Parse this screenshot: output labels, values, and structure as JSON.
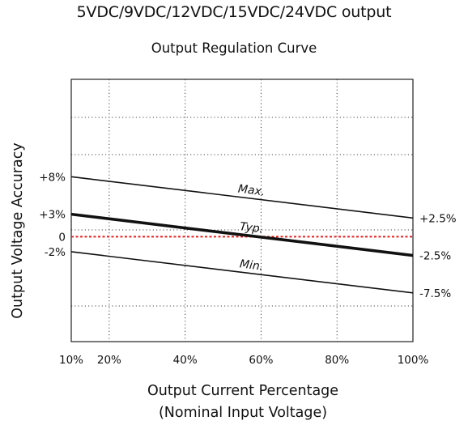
{
  "chart_data": {
    "type": "line",
    "title": "5VDC/9VDC/12VDC/15VDC/24VDC output",
    "subtitle": "Output Regulation Curve",
    "xlabel": "Output Current Percentage",
    "xlabel_sub": "(Nominal Input Voltage)",
    "ylabel": "Output Voltage Accuracy",
    "x_ticks": [
      "10%",
      "20%",
      "40%",
      "60%",
      "80%",
      "100%"
    ],
    "x_tick_values": [
      10,
      20,
      40,
      60,
      80,
      100
    ],
    "y_ticks": [
      "+8%",
      "+3%",
      "0",
      "-2%"
    ],
    "y_tick_values": [
      8,
      3,
      0,
      -2
    ],
    "right_labels": [
      "+2.5%",
      "-2.5%",
      "-7.5%"
    ],
    "right_label_values": [
      2.5,
      -2.5,
      -7.5
    ],
    "xlim": [
      10,
      100
    ],
    "ylim": [
      -14,
      21
    ],
    "grid": true,
    "zero_line_color": "#e02020",
    "series": [
      {
        "name": "Max.",
        "x": [
          10,
          100
        ],
        "values": [
          8,
          2.5
        ]
      },
      {
        "name": "Typ.",
        "x": [
          10,
          100
        ],
        "values": [
          3,
          -2.5
        ]
      },
      {
        "name": "Min.",
        "x": [
          10,
          100
        ],
        "values": [
          -2,
          -7.5
        ]
      }
    ]
  }
}
